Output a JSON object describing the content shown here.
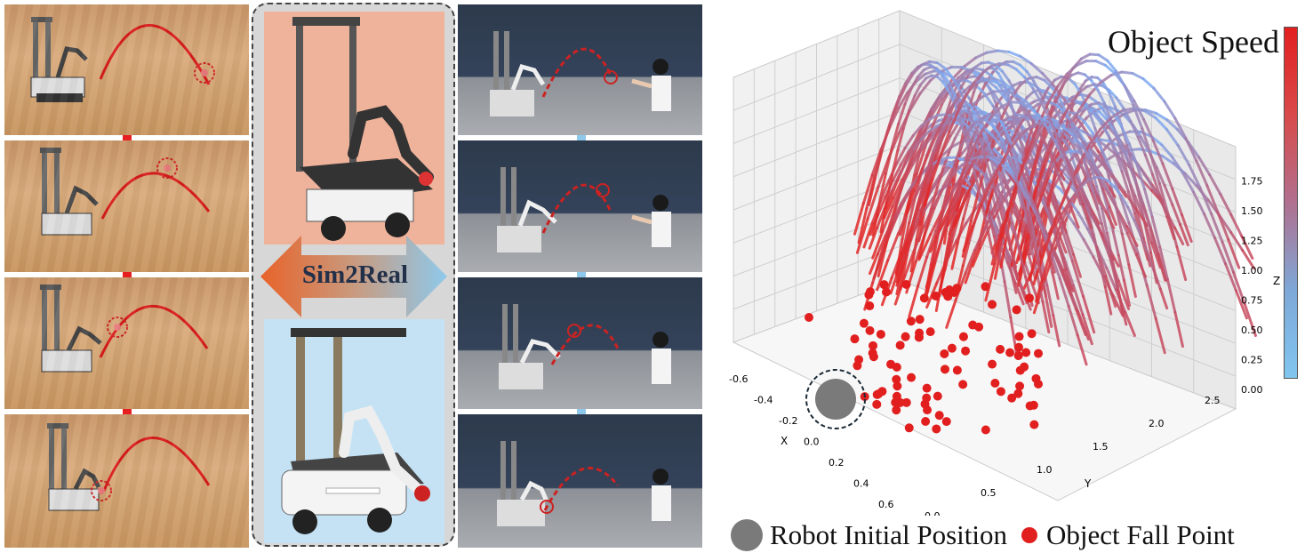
{
  "figure": {
    "center_label": "Sim2Real",
    "colorbar_label": "Object Speed",
    "legend": {
      "robot": "Robot Initial Position",
      "fall": "Object Fall Point"
    },
    "axes": {
      "x_label": "X",
      "y_label": "Y",
      "z_label": "Z",
      "x_ticks": [
        "-0.6",
        "-0.4",
        "-0.2",
        "0.0",
        "0.2",
        "0.4",
        "0.6"
      ],
      "y_ticks": [
        "0.0",
        "0.5",
        "1.0",
        "1.5",
        "2.0",
        "2.5"
      ],
      "z_ticks": [
        "0.00",
        "0.25",
        "0.50",
        "0.75",
        "1.00",
        "1.25",
        "1.50",
        "1.75"
      ]
    },
    "colors": {
      "trajectory": "#d82020",
      "sim2real_left": "#e8632a",
      "sim2real_right": "#8ec9ec",
      "robot_marker": "#7a7a7a"
    }
  }
}
